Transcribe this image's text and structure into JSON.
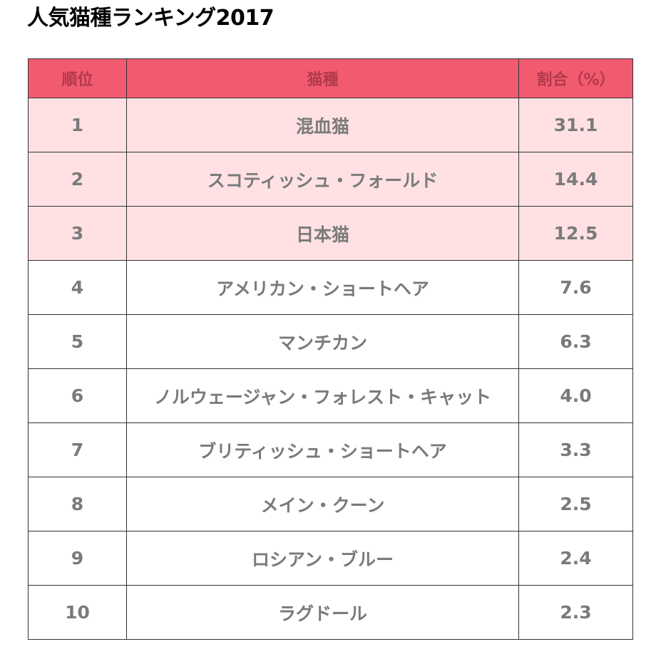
{
  "title": "人気猫種ランキング2017",
  "table": {
    "headers": {
      "rank": "順位",
      "breed": "猫種",
      "ratio": "割合（%）"
    },
    "rows": [
      {
        "rank": "1",
        "breed": "混血猫",
        "ratio": "31.1"
      },
      {
        "rank": "2",
        "breed": "スコティッシュ・フォールド",
        "ratio": "14.4"
      },
      {
        "rank": "3",
        "breed": "日本猫",
        "ratio": "12.5"
      },
      {
        "rank": "4",
        "breed": "アメリカン・ショートヘア",
        "ratio": "7.6"
      },
      {
        "rank": "5",
        "breed": "マンチカン",
        "ratio": "6.3"
      },
      {
        "rank": "6",
        "breed": "ノルウェージャン・フォレスト・キャット",
        "ratio": "4.0"
      },
      {
        "rank": "7",
        "breed": "ブリティッシュ・ショートヘア",
        "ratio": "3.3"
      },
      {
        "rank": "8",
        "breed": "メイン・クーン",
        "ratio": "2.5"
      },
      {
        "rank": "9",
        "breed": "ロシアン・ブルー",
        "ratio": "2.4"
      },
      {
        "rank": "10",
        "breed": "ラグドール",
        "ratio": "2.3"
      }
    ]
  },
  "colors": {
    "header_background": "#f25a70",
    "header_text": "#b03a4b",
    "highlight_row_background": "#ffe1e4",
    "cell_text": "#7a7a7a",
    "border": "#333333"
  }
}
